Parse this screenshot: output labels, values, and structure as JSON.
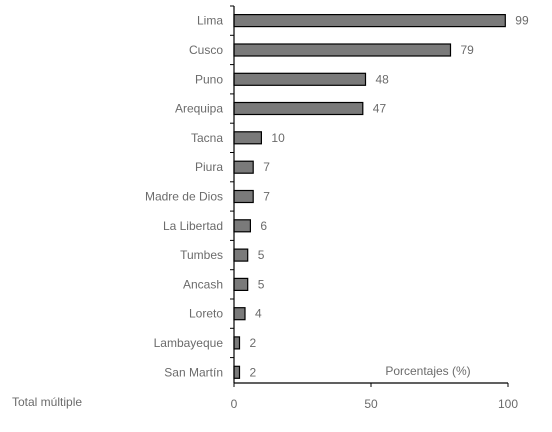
{
  "chart_data": {
    "type": "bar",
    "orientation": "horizontal",
    "categories": [
      "Lima",
      "Cusco",
      "Puno",
      "Arequipa",
      "Tacna",
      "Piura",
      "Madre de Dios",
      "La Libertad",
      "Tumbes",
      "Ancash",
      "Loreto",
      "Lambayeque",
      "San Martín"
    ],
    "values": [
      99,
      79,
      48,
      47,
      10,
      7,
      7,
      6,
      5,
      5,
      4,
      2,
      2
    ],
    "value_labels": [
      "99",
      "79",
      "48",
      "47",
      "10",
      "7",
      "7",
      "6",
      "5",
      "5",
      "4",
      "2",
      "2"
    ],
    "xlim": [
      0,
      100
    ],
    "x_ticks": [
      "0",
      "50",
      "100"
    ],
    "x_tick_values": [
      0,
      50,
      100
    ],
    "xlabel": "Porcentajes (%)",
    "footnote": "Total múltiple",
    "bar_color": "#7a7a7a",
    "bar_edge_color": "#000000",
    "text_color": "#6b6b6b",
    "grid": false
  }
}
